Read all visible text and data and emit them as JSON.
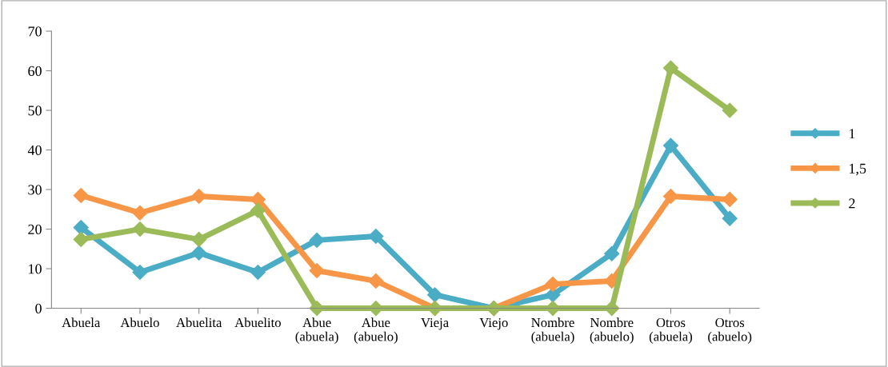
{
  "chart_data": {
    "type": "line",
    "categories": [
      "Abuela",
      "Abuelo",
      "Abuelita",
      "Abuelito",
      "Abue\n(abuela)",
      "Abue\n(abuelo)",
      "Vieja",
      "Viejo",
      "Nombre\n(abuela)",
      "Nombre\n(abuelo)",
      "Otros\n(abuela)",
      "Otros\n(abuelo)"
    ],
    "series": [
      {
        "name": "1",
        "color": "#4bacc6",
        "values": [
          20.4,
          9.1,
          14,
          9.1,
          17.2,
          18.2,
          3.4,
          0,
          3.4,
          13.8,
          41.1,
          22.7
        ]
      },
      {
        "name": "1,5",
        "color": "#f79646",
        "values": [
          28.5,
          24.1,
          28.3,
          27.5,
          9.5,
          6.9,
          0,
          0,
          6.1,
          6.9,
          28.3,
          27.5
        ]
      },
      {
        "name": "2",
        "color": "#9bbb59",
        "values": [
          17.4,
          20,
          17.4,
          24.7,
          0,
          0,
          0,
          0,
          0,
          0,
          60.7,
          50
        ]
      }
    ],
    "ylim": [
      0,
      70
    ],
    "yticks": [
      0,
      10,
      20,
      30,
      40,
      50,
      60,
      70
    ],
    "marker": "diamond",
    "line_style": "solid",
    "legend": "right",
    "grid": false
  }
}
